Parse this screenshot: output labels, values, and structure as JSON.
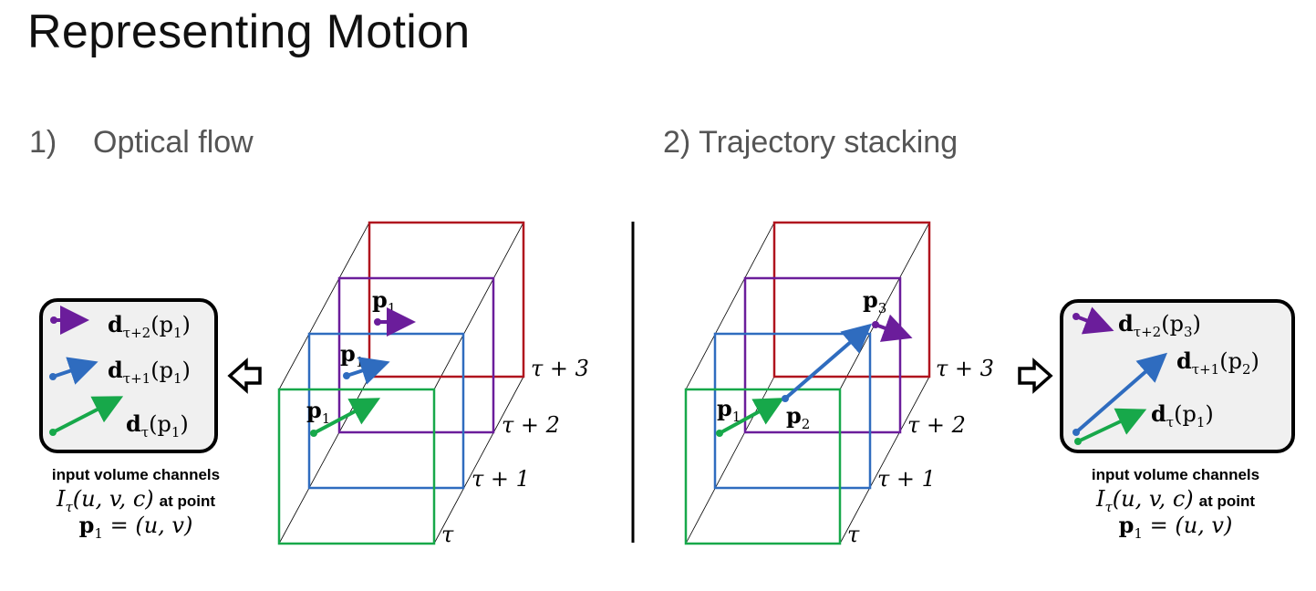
{
  "title": "Representing Motion",
  "section1": {
    "number": "1)",
    "label": "Optical flow"
  },
  "section2": {
    "label": "2) Trajectory stacking"
  },
  "colors": {
    "red": "#b0141e",
    "purple": "#6b1d9b",
    "blue": "#2f6cbf",
    "green": "#17a84a",
    "box_bg": "#f0f0f0"
  },
  "frame_labels": {
    "tau3": "τ + 3",
    "tau2": "τ + 2",
    "tau1": "τ + 1",
    "tau": "τ"
  },
  "optical_flow": {
    "points": {
      "p_purple": "p",
      "p_blue": "p",
      "p_green": "p",
      "sub": "1"
    },
    "channels": [
      {
        "d": "d",
        "sub": "τ+2",
        "arg": "(p",
        "argsub": "1",
        "close": ")"
      },
      {
        "d": "d",
        "sub": "τ+1",
        "arg": "(p",
        "argsub": "1",
        "close": ")"
      },
      {
        "d": "d",
        "sub": "τ",
        "arg": "(p",
        "argsub": "1",
        "close": ")"
      }
    ],
    "caption": {
      "line1": "input volume channels",
      "line2_math": "I",
      "line2_sub": "τ",
      "line2_args": "(u, v, c)",
      "line2_tail": "at point",
      "line3_p": "p",
      "line3_sub": "1",
      "line3_rest": " = (u, v)"
    }
  },
  "trajectory": {
    "points": {
      "p1": "p",
      "p1_sub": "1",
      "p2": "p",
      "p2_sub": "2",
      "p3": "p",
      "p3_sub": "3"
    },
    "channels": [
      {
        "d": "d",
        "sub": "τ+2",
        "arg": "(p",
        "argsub": "3",
        "close": ")"
      },
      {
        "d": "d",
        "sub": "τ+1",
        "arg": "(p",
        "argsub": "2",
        "close": ")"
      },
      {
        "d": "d",
        "sub": "τ",
        "arg": "(p",
        "argsub": "1",
        "close": ")"
      }
    ],
    "caption": {
      "line1": "input volume channels",
      "line2_math": "I",
      "line2_sub": "τ",
      "line2_args": "(u, v, c)",
      "line2_tail": "at point",
      "line3_p": "p",
      "line3_sub": "1",
      "line3_rest": " = (u, v)"
    }
  }
}
